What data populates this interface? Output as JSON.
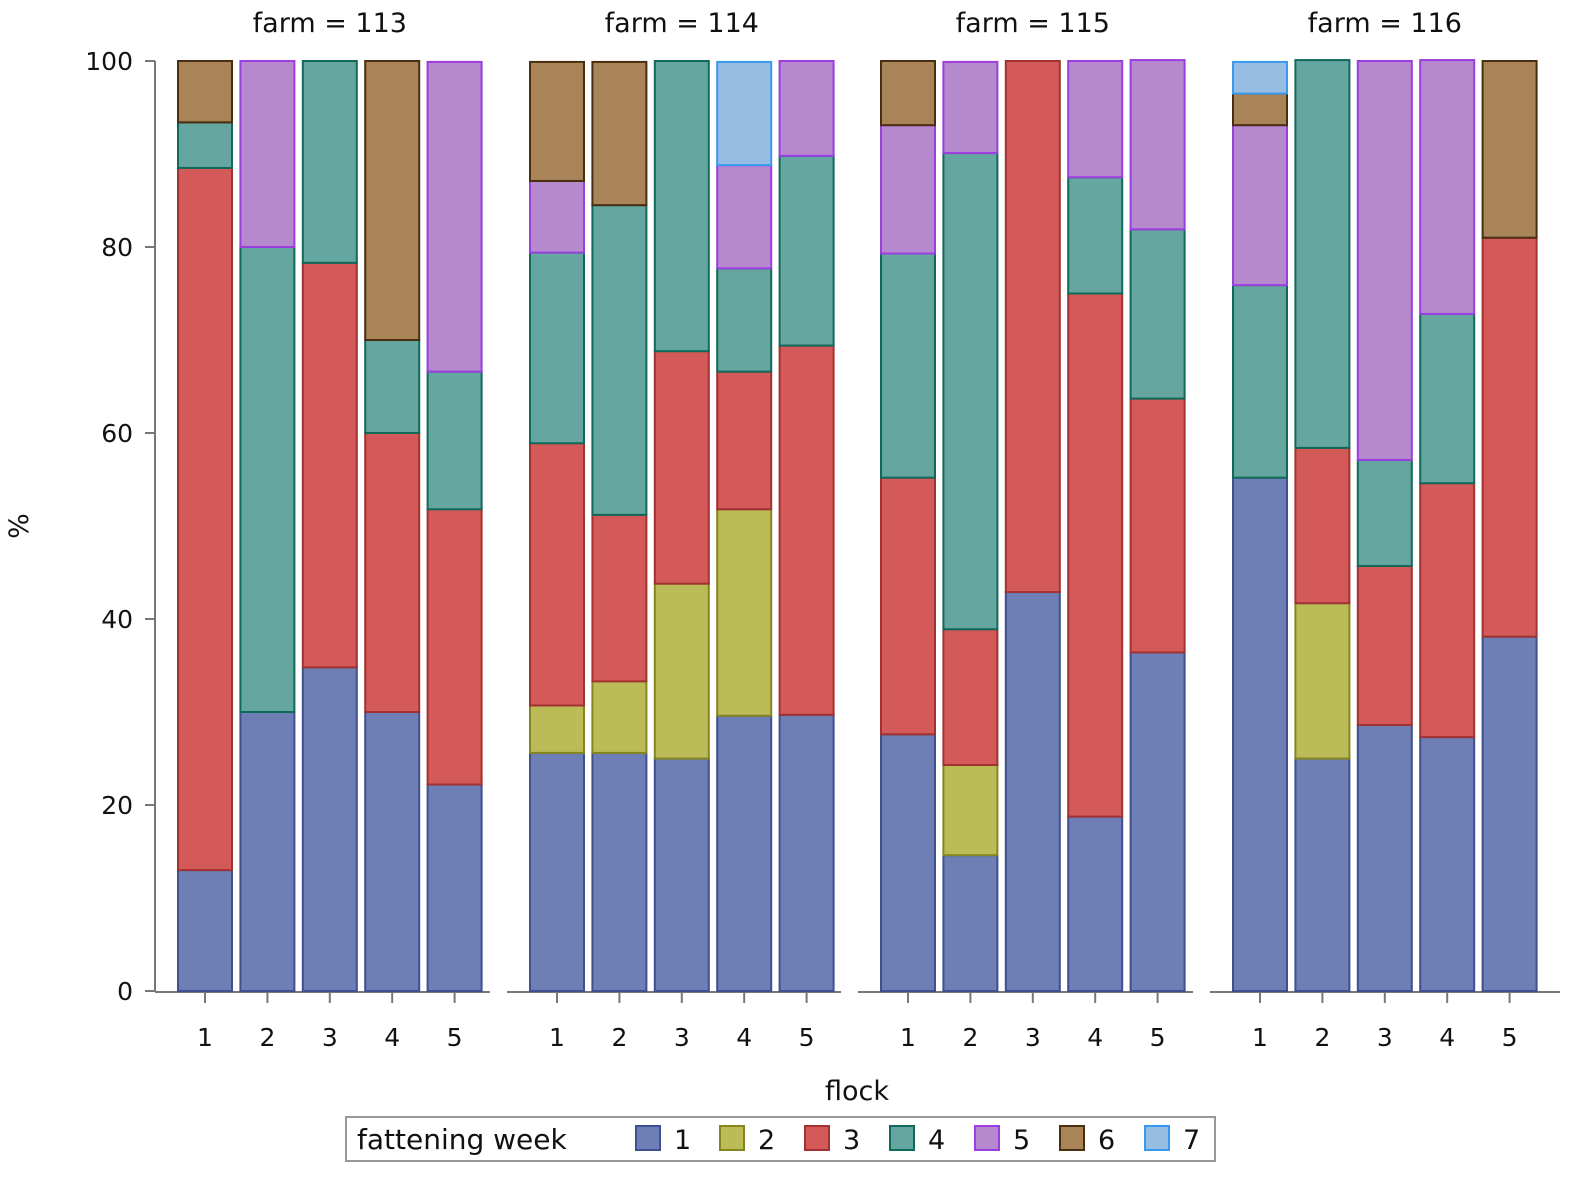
{
  "chart_data": {
    "type": "bar",
    "stacked": true,
    "ylabel": "%",
    "xlabel": "flock",
    "ylim": [
      0,
      100
    ],
    "yticks": [
      0,
      20,
      40,
      60,
      80,
      100
    ],
    "legend": {
      "title": "fattening week",
      "placement": "bottom",
      "entries": [
        "1",
        "2",
        "3",
        "4",
        "5",
        "6",
        "7"
      ]
    },
    "colors": {
      "fill": [
        "#6e7fb5",
        "#bbbb58",
        "#d35a58",
        "#66a6a0",
        "#b689cf",
        "#a88458",
        "#97bde3"
      ],
      "stroke": [
        "#3f4f8f",
        "#86861e",
        "#a23232",
        "#0f6a5a",
        "#9a3ee0",
        "#4a2e10",
        "#3a98f0"
      ]
    },
    "panels": [
      {
        "title": "farm = 113",
        "categories": [
          "1",
          "2",
          "3",
          "4",
          "5"
        ],
        "series_by_flock": [
          [
            13.0,
            0,
            75.5,
            4.9,
            0,
            6.6,
            0
          ],
          [
            30.0,
            0,
            0,
            50.0,
            20.0,
            0,
            0
          ],
          [
            34.8,
            0,
            43.5,
            21.7,
            0,
            0,
            0
          ],
          [
            30.0,
            0,
            30.0,
            10.0,
            0,
            30.0,
            0
          ],
          [
            22.2,
            0,
            29.6,
            14.8,
            33.3,
            0,
            0
          ]
        ]
      },
      {
        "title": "farm = 114",
        "categories": [
          "1",
          "2",
          "3",
          "4",
          "5"
        ],
        "series_by_flock": [
          [
            25.6,
            5.1,
            28.2,
            20.5,
            7.7,
            12.8,
            0
          ],
          [
            25.6,
            7.7,
            17.9,
            33.3,
            0,
            15.4,
            0
          ],
          [
            25.0,
            18.8,
            25.0,
            31.2,
            0,
            0,
            0
          ],
          [
            29.6,
            22.2,
            14.8,
            11.1,
            11.1,
            0,
            11.1
          ],
          [
            29.7,
            0,
            39.7,
            20.4,
            10.2,
            0,
            0
          ]
        ]
      },
      {
        "title": "farm = 115",
        "categories": [
          "1",
          "2",
          "3",
          "4",
          "5"
        ],
        "series_by_flock": [
          [
            27.6,
            0,
            27.6,
            24.1,
            13.8,
            6.9,
            0
          ],
          [
            14.6,
            9.7,
            14.6,
            51.2,
            9.8,
            0,
            0
          ],
          [
            42.9,
            0,
            57.1,
            0,
            0,
            0,
            0
          ],
          [
            18.75,
            0,
            56.25,
            12.5,
            12.5,
            0,
            0
          ],
          [
            36.4,
            0,
            27.3,
            18.2,
            18.2,
            0,
            0
          ]
        ]
      },
      {
        "title": "farm = 116",
        "categories": [
          "1",
          "2",
          "3",
          "4",
          "5"
        ],
        "series_by_flock": [
          [
            55.2,
            0,
            0,
            20.7,
            17.2,
            3.4,
            3.4
          ],
          [
            25.0,
            16.7,
            16.7,
            41.7,
            0,
            0,
            0
          ],
          [
            28.6,
            0,
            17.1,
            11.4,
            42.9,
            0,
            0
          ],
          [
            27.3,
            0,
            27.3,
            18.2,
            27.3,
            0,
            0
          ],
          [
            38.1,
            0,
            42.9,
            0,
            0,
            19.0,
            0
          ]
        ]
      }
    ]
  }
}
